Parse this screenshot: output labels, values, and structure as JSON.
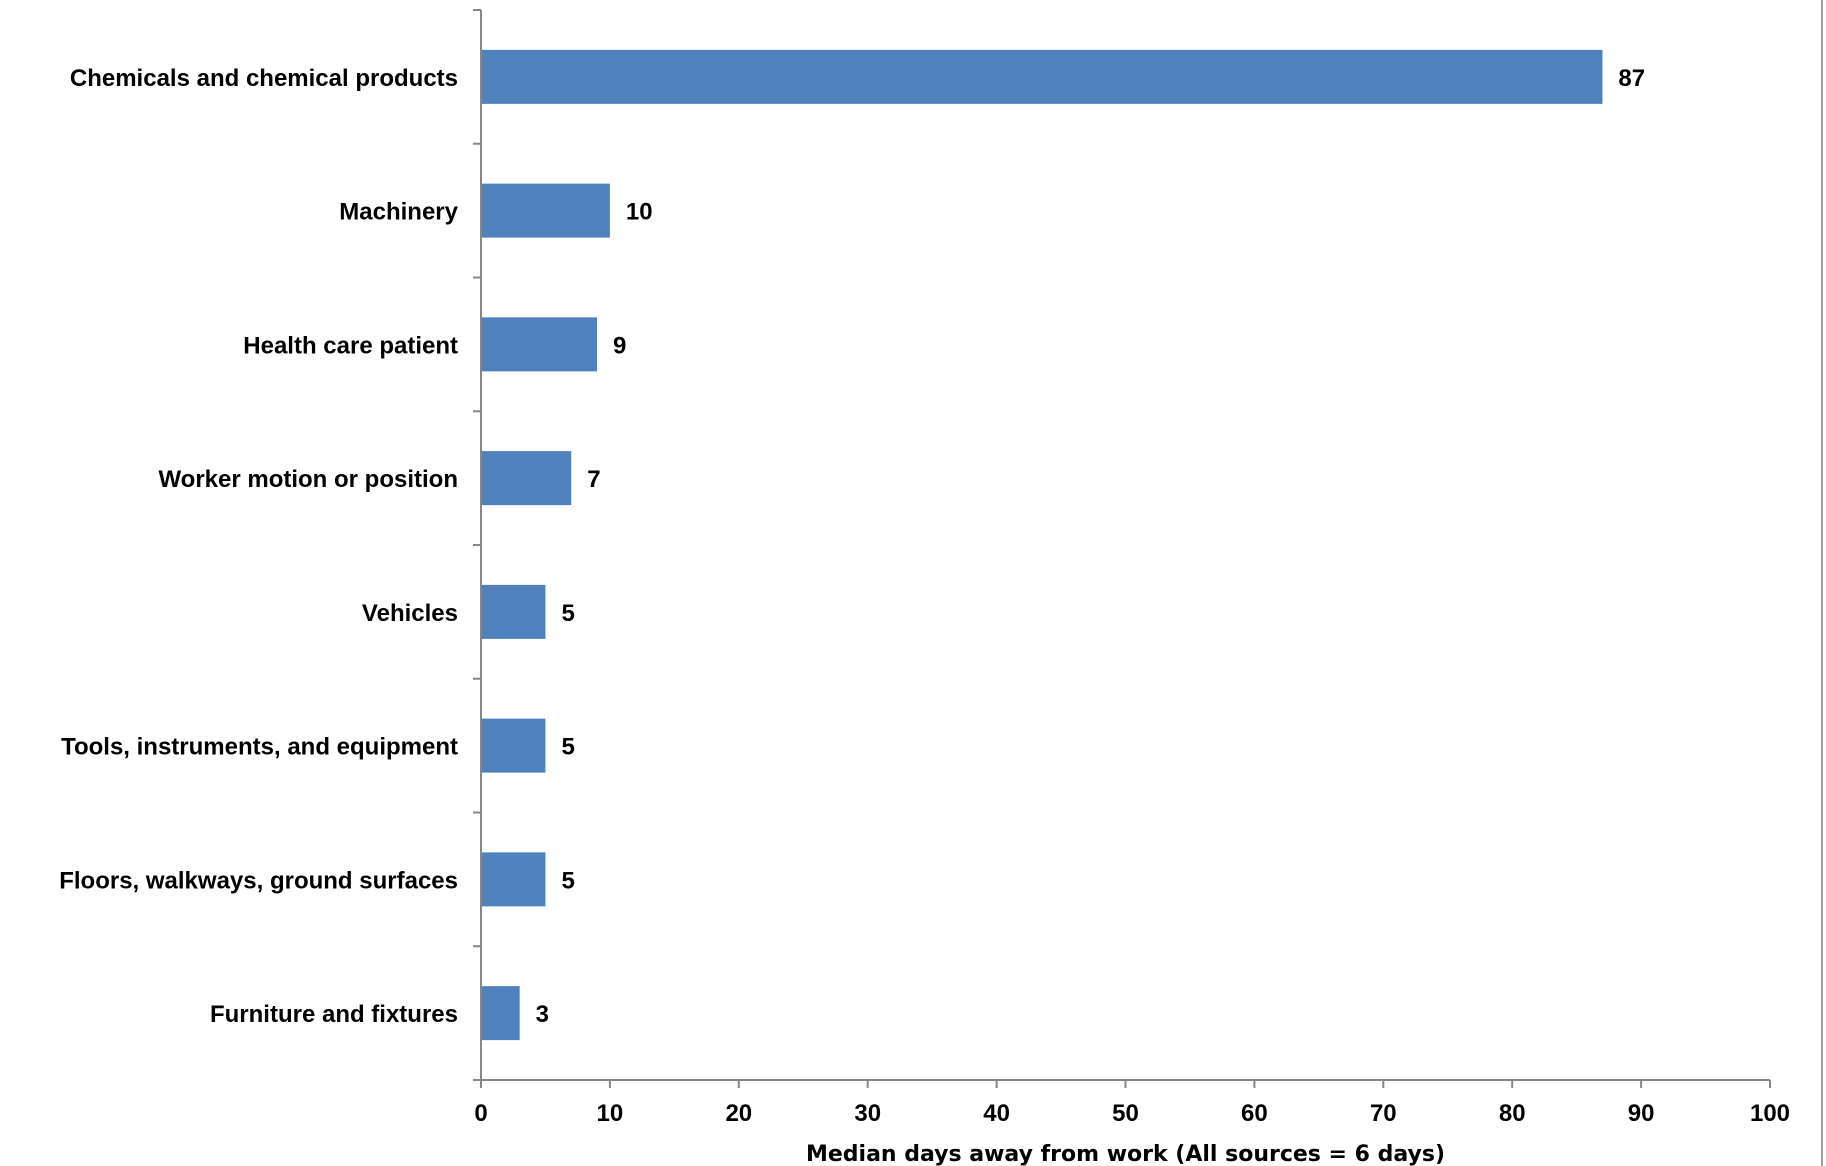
{
  "chart_data": {
    "type": "bar",
    "orientation": "horizontal",
    "categories": [
      "Chemicals and chemical products",
      "Machinery",
      "Health care patient",
      "Worker motion or position",
      "Vehicles",
      "Tools, instruments, and equipment",
      "Floors, walkways, ground surfaces",
      "Furniture and fixtures"
    ],
    "values": [
      87,
      10,
      9,
      7,
      5,
      5,
      5,
      3
    ],
    "title": "",
    "xlabel": "Median days away from work (All sources = 6 days)",
    "ylabel": "",
    "xlim": [
      0,
      100
    ],
    "xticks": [
      0,
      10,
      20,
      30,
      40,
      50,
      60,
      70,
      80,
      90,
      100
    ],
    "bar_color": "#4f81bd",
    "data_labels": true,
    "grid": false,
    "legend": "none"
  }
}
